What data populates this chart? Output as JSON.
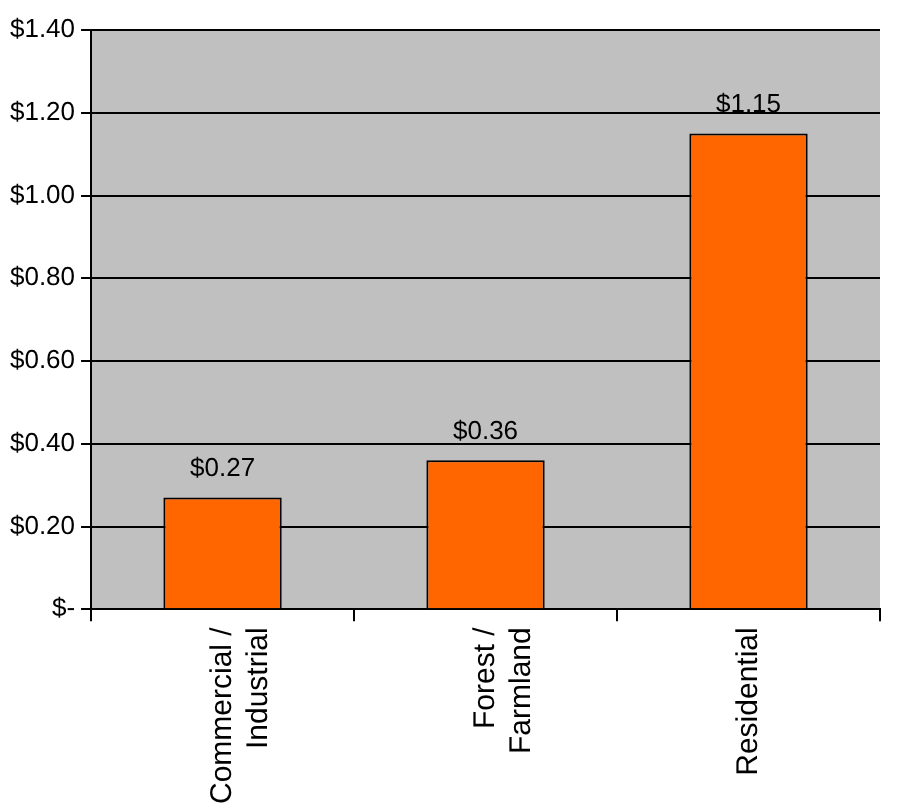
{
  "chart_data": {
    "type": "bar",
    "categories": [
      "Commercial /\nIndustrial",
      "Forest /\nFarmland",
      "Residential"
    ],
    "values": [
      0.27,
      0.36,
      1.15
    ],
    "color": "#ff6600",
    "value_labels": [
      "$0.27",
      "$0.36",
      "$1.15"
    ],
    "ylim": [
      0,
      1.4
    ],
    "yticks": [
      {
        "value": 0,
        "label": "$-"
      },
      {
        "value": 0.2,
        "label": "$0.20"
      },
      {
        "value": 0.4,
        "label": "$0.40"
      },
      {
        "value": 0.6,
        "label": "$0.60"
      },
      {
        "value": 0.8,
        "label": "$0.80"
      },
      {
        "value": 1.0,
        "label": "$1.00"
      },
      {
        "value": 1.2,
        "label": "$1.20"
      },
      {
        "value": 1.4,
        "label": "$1.40"
      }
    ],
    "grid": "y",
    "legend": false
  }
}
